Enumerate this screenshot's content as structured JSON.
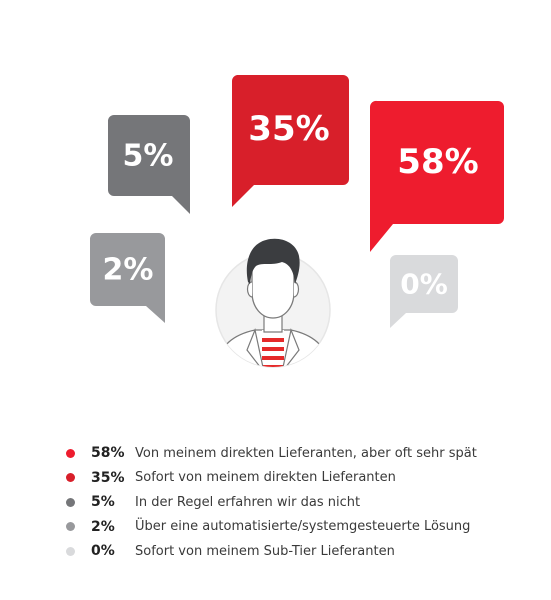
{
  "chart_data": {
    "type": "bubble-infographic",
    "title": "",
    "series": [
      {
        "value": 58,
        "label": "58%",
        "text": "Von meinem direkten Lieferanten, aber oft sehr spät",
        "color": "#ee1c2e"
      },
      {
        "value": 35,
        "label": "35%",
        "text": "Sofort von meinem direkten Lieferanten",
        "color": "#d81f2a"
      },
      {
        "value": 5,
        "label": "5%",
        "text": "In der Regel erfahren wir das nicht",
        "color": "#757679"
      },
      {
        "value": 2,
        "label": "2%",
        "text": "Über eine automatisierte/systemgesteuerte Lösung",
        "color": "#98999c"
      },
      {
        "value": 0,
        "label": "0%",
        "text": "Sofort von meinem Sub-Tier Lieferanten",
        "color": "#d9dadc"
      }
    ]
  },
  "avatar_icon": "person-avatar-icon"
}
